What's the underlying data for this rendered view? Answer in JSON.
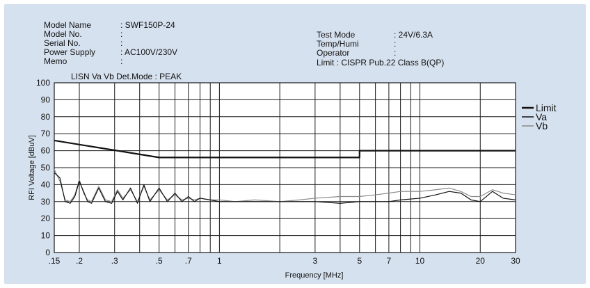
{
  "header": {
    "left": [
      {
        "label": "Model Name",
        "value": ": SWF150P-24"
      },
      {
        "label": "Model No.",
        "value": ":"
      },
      {
        "label": "Serial No.",
        "value": ":"
      },
      {
        "label": "Power Supply",
        "value": ": AC100V/230V"
      },
      {
        "label": "Memo",
        "value": ":"
      }
    ],
    "right": [
      {
        "label": "Test Mode",
        "value": ": 24V/6.3A"
      },
      {
        "label": "Temp/Humi",
        "value": ":"
      },
      {
        "label": "Operator",
        "value": ":"
      }
    ],
    "limit_line": "Limit  : CISPR Pub.22 Class B(QP)",
    "lisn_line": "LISN Va Vb  Det.Mode : PEAK"
  },
  "chart_data": {
    "type": "line",
    "title": "",
    "xlabel": "Frequency [MHz]",
    "ylabel": "RFI Voltage [dBuV]",
    "x_scale": "log",
    "xlim": [
      0.15,
      30
    ],
    "ylim": [
      0,
      100
    ],
    "x_ticks": [
      0.15,
      0.2,
      0.3,
      0.5,
      0.7,
      1,
      3,
      5,
      7,
      10,
      20,
      30
    ],
    "x_tick_labels": [
      ".15",
      ".2",
      ".3",
      ".5",
      ".7",
      "1",
      "3",
      "5",
      "7",
      "10",
      "20",
      "30"
    ],
    "x_gridlines": [
      0.15,
      0.2,
      0.3,
      0.4,
      0.5,
      0.6,
      0.7,
      0.8,
      0.9,
      1,
      2,
      3,
      4,
      5,
      6,
      7,
      8,
      9,
      10,
      20,
      30
    ],
    "y_ticks": [
      0,
      10,
      20,
      30,
      40,
      50,
      60,
      70,
      80,
      90,
      100
    ],
    "grid": true,
    "legend_position": "right",
    "series": [
      {
        "name": "Limit",
        "color": "#111111",
        "width": 2.2,
        "x": [
          0.15,
          0.5,
          0.5,
          5,
          5,
          30
        ],
        "y": [
          66,
          56,
          56,
          56,
          60,
          60
        ]
      },
      {
        "name": "Va",
        "color": "#111111",
        "width": 1.2,
        "x": [
          0.15,
          0.16,
          0.17,
          0.18,
          0.19,
          0.2,
          0.21,
          0.22,
          0.23,
          0.25,
          0.27,
          0.29,
          0.31,
          0.33,
          0.36,
          0.39,
          0.42,
          0.45,
          0.5,
          0.55,
          0.6,
          0.65,
          0.7,
          0.75,
          0.8,
          0.9,
          1,
          1.2,
          1.5,
          2,
          2.5,
          3,
          4,
          5,
          6,
          7,
          8,
          10,
          12,
          14,
          16,
          18,
          20,
          23,
          26,
          30
        ],
        "y": [
          47,
          44,
          30,
          29,
          33,
          42,
          36,
          30,
          29,
          38,
          30,
          29,
          36,
          31,
          38,
          29,
          40,
          30,
          38,
          30,
          35,
          30,
          33,
          30,
          32,
          31,
          30,
          30,
          30,
          30,
          30,
          30,
          29,
          30,
          30,
          30,
          31,
          32,
          34,
          36,
          35,
          31,
          30,
          36,
          32,
          31
        ]
      },
      {
        "name": "Vb",
        "color": "#8a8a8a",
        "width": 1.2,
        "x": [
          0.15,
          0.16,
          0.17,
          0.18,
          0.19,
          0.2,
          0.21,
          0.22,
          0.23,
          0.25,
          0.27,
          0.29,
          0.31,
          0.33,
          0.36,
          0.39,
          0.42,
          0.45,
          0.5,
          0.55,
          0.6,
          0.65,
          0.7,
          0.75,
          0.8,
          0.9,
          1,
          1.2,
          1.5,
          2,
          2.5,
          3,
          4,
          5,
          6,
          7,
          8,
          10,
          12,
          14,
          16,
          18,
          20,
          23,
          26,
          30
        ],
        "y": [
          49,
          42,
          31,
          30,
          34,
          43,
          35,
          31,
          30,
          39,
          31,
          30,
          37,
          32,
          37,
          30,
          39,
          31,
          37,
          31,
          34,
          31,
          32,
          31,
          32,
          31,
          31,
          30,
          31,
          30,
          31,
          32,
          33,
          33,
          34,
          35,
          36,
          36,
          37,
          38,
          36,
          33,
          33,
          37,
          35,
          34
        ]
      }
    ]
  }
}
